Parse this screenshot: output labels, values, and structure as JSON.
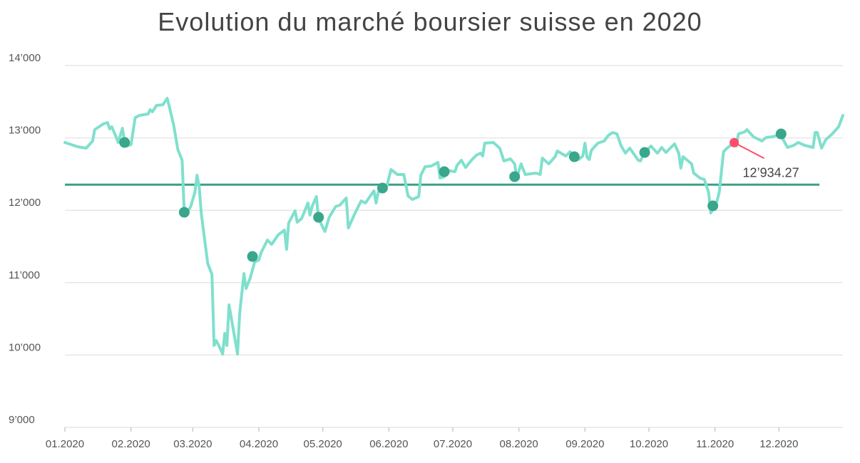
{
  "chart_data": {
    "type": "line",
    "title": "Evolution du marché boursier suisse en 2020",
    "xlabel": "",
    "ylabel": "",
    "ylim": [
      9000,
      14000
    ],
    "xlim": [
      "2020-01-01",
      "2020-12-31"
    ],
    "grid": true,
    "yticks": [
      {
        "value": 9000,
        "label": "9’000"
      },
      {
        "value": 10000,
        "label": "10’000"
      },
      {
        "value": 11000,
        "label": "11’000"
      },
      {
        "value": 12000,
        "label": "12’000"
      },
      {
        "value": 13000,
        "label": "13’000"
      },
      {
        "value": 14000,
        "label": "14’000"
      }
    ],
    "xticks": [
      {
        "date": "2020-01-01",
        "label": "01.2020"
      },
      {
        "date": "2020-02-01",
        "label": "02.2020"
      },
      {
        "date": "2020-03-01",
        "label": "03.2020"
      },
      {
        "date": "2020-04-01",
        "label": "04.2020"
      },
      {
        "date": "2020-05-01",
        "label": "05.2020"
      },
      {
        "date": "2020-06-01",
        "label": "06.2020"
      },
      {
        "date": "2020-07-01",
        "label": "07.2020"
      },
      {
        "date": "2020-08-01",
        "label": "08.2020"
      },
      {
        "date": "2020-09-01",
        "label": "09.2020"
      },
      {
        "date": "2020-10-01",
        "label": "10.2020"
      },
      {
        "date": "2020-11-01",
        "label": "11.2020"
      },
      {
        "date": "2020-12-01",
        "label": "12.2020"
      }
    ],
    "colors": {
      "line": "#7fe0cd",
      "marker": "#3aa68b",
      "average": "#3f9f86",
      "highlight": "#ff4d6a",
      "grid": "#e6e6e6"
    },
    "series": [
      {
        "points": [
          [
            "2020-01-01",
            12937
          ],
          [
            "2020-01-04",
            12907
          ],
          [
            "2020-01-07",
            12878
          ],
          [
            "2020-01-11",
            12858
          ],
          [
            "2020-01-14",
            12957
          ],
          [
            "2020-01-15",
            13114
          ],
          [
            "2020-01-19",
            13193
          ],
          [
            "2020-01-21",
            13213
          ],
          [
            "2020-01-22",
            13124
          ],
          [
            "2020-01-23",
            13154
          ],
          [
            "2020-01-25",
            13016
          ],
          [
            "2020-01-26",
            12937
          ],
          [
            "2020-01-28",
            13134
          ],
          [
            "2020-01-29",
            12937
          ],
          [
            "2020-01-30",
            12888
          ],
          [
            "2020-02-01",
            12907
          ],
          [
            "2020-02-03",
            13281
          ],
          [
            "2020-02-05",
            13311
          ],
          [
            "2020-02-09",
            13331
          ],
          [
            "2020-02-10",
            13390
          ],
          [
            "2020-02-11",
            13360
          ],
          [
            "2020-02-13",
            13449
          ],
          [
            "2020-02-16",
            13459
          ],
          [
            "2020-02-18",
            13547
          ],
          [
            "2020-02-19",
            13429
          ],
          [
            "2020-02-21",
            13183
          ],
          [
            "2020-02-23",
            12839
          ],
          [
            "2020-02-25",
            12691
          ],
          [
            "2020-02-26",
            11972
          ],
          [
            "2020-02-27",
            11953
          ],
          [
            "2020-02-29",
            12051
          ],
          [
            "2020-03-02",
            12248
          ],
          [
            "2020-03-03",
            12484
          ],
          [
            "2020-03-04",
            12327
          ],
          [
            "2020-03-05",
            11953
          ],
          [
            "2020-03-08",
            11264
          ],
          [
            "2020-03-10",
            11116
          ],
          [
            "2020-03-11",
            10132
          ],
          [
            "2020-03-12",
            10201
          ],
          [
            "2020-03-14",
            10083
          ],
          [
            "2020-03-15",
            10014
          ],
          [
            "2020-03-16",
            10299
          ],
          [
            "2020-03-17",
            10132
          ],
          [
            "2020-03-18",
            10693
          ],
          [
            "2020-03-22",
            10014
          ],
          [
            "2020-03-23",
            10575
          ],
          [
            "2020-03-25",
            11126
          ],
          [
            "2020-03-26",
            10919
          ],
          [
            "2020-03-28",
            11067
          ],
          [
            "2020-03-30",
            11283
          ],
          [
            "2020-04-01",
            11313
          ],
          [
            "2020-04-02",
            11411
          ],
          [
            "2020-04-05",
            11589
          ],
          [
            "2020-04-07",
            11529
          ],
          [
            "2020-04-10",
            11657
          ],
          [
            "2020-04-13",
            11726
          ],
          [
            "2020-04-14",
            11460
          ],
          [
            "2020-04-15",
            11825
          ],
          [
            "2020-04-18",
            11992
          ],
          [
            "2020-04-19",
            11835
          ],
          [
            "2020-04-21",
            11884
          ],
          [
            "2020-04-22",
            11953
          ],
          [
            "2020-04-24",
            12100
          ],
          [
            "2020-04-25",
            11933
          ],
          [
            "2020-04-26",
            12051
          ],
          [
            "2020-04-28",
            12189
          ],
          [
            "2020-04-29",
            11884
          ],
          [
            "2020-05-02",
            11707
          ],
          [
            "2020-05-04",
            11903
          ],
          [
            "2020-05-07",
            12051
          ],
          [
            "2020-05-09",
            12071
          ],
          [
            "2020-05-12",
            12169
          ],
          [
            "2020-05-13",
            11756
          ],
          [
            "2020-05-16",
            11953
          ],
          [
            "2020-05-19",
            12130
          ],
          [
            "2020-05-21",
            12100
          ],
          [
            "2020-05-24",
            12228
          ],
          [
            "2020-05-25",
            12268
          ],
          [
            "2020-05-26",
            12100
          ],
          [
            "2020-05-27",
            12248
          ],
          [
            "2020-05-29",
            12268
          ],
          [
            "2020-05-31",
            12327
          ],
          [
            "2020-06-02",
            12563
          ],
          [
            "2020-06-05",
            12494
          ],
          [
            "2020-06-08",
            12494
          ],
          [
            "2020-06-10",
            12199
          ],
          [
            "2020-06-12",
            12150
          ],
          [
            "2020-06-15",
            12189
          ],
          [
            "2020-06-16",
            12484
          ],
          [
            "2020-06-18",
            12602
          ],
          [
            "2020-06-21",
            12612
          ],
          [
            "2020-06-24",
            12661
          ],
          [
            "2020-06-25",
            12445
          ],
          [
            "2020-06-27",
            12464
          ],
          [
            "2020-06-28",
            12553
          ],
          [
            "2020-07-02",
            12533
          ],
          [
            "2020-07-03",
            12622
          ],
          [
            "2020-07-05",
            12691
          ],
          [
            "2020-07-07",
            12592
          ],
          [
            "2020-07-10",
            12701
          ],
          [
            "2020-07-12",
            12760
          ],
          [
            "2020-07-14",
            12789
          ],
          [
            "2020-07-15",
            12750
          ],
          [
            "2020-07-16",
            12927
          ],
          [
            "2020-07-20",
            12937
          ],
          [
            "2020-07-23",
            12858
          ],
          [
            "2020-07-25",
            12681
          ],
          [
            "2020-07-28",
            12711
          ],
          [
            "2020-07-30",
            12642
          ],
          [
            "2020-07-31",
            12445
          ],
          [
            "2020-08-02",
            12642
          ],
          [
            "2020-08-04",
            12494
          ],
          [
            "2020-08-09",
            12514
          ],
          [
            "2020-08-11",
            12494
          ],
          [
            "2020-08-12",
            12720
          ],
          [
            "2020-08-15",
            12642
          ],
          [
            "2020-08-18",
            12740
          ],
          [
            "2020-08-19",
            12819
          ],
          [
            "2020-08-23",
            12750
          ],
          [
            "2020-08-25",
            12809
          ],
          [
            "2020-08-27",
            12730
          ],
          [
            "2020-08-29",
            12701
          ],
          [
            "2020-08-31",
            12750
          ],
          [
            "2020-09-01",
            12927
          ],
          [
            "2020-09-02",
            12730
          ],
          [
            "2020-09-03",
            12701
          ],
          [
            "2020-09-04",
            12829
          ],
          [
            "2020-09-07",
            12927
          ],
          [
            "2020-09-10",
            12957
          ],
          [
            "2020-09-12",
            13036
          ],
          [
            "2020-09-14",
            13075
          ],
          [
            "2020-09-16",
            13055
          ],
          [
            "2020-09-18",
            12888
          ],
          [
            "2020-09-20",
            12789
          ],
          [
            "2020-09-22",
            12858
          ],
          [
            "2020-09-26",
            12691
          ],
          [
            "2020-09-27",
            12681
          ],
          [
            "2020-09-29",
            12799
          ],
          [
            "2020-10-02",
            12888
          ],
          [
            "2020-10-04",
            12819
          ],
          [
            "2020-10-05",
            12789
          ],
          [
            "2020-10-07",
            12868
          ],
          [
            "2020-10-09",
            12799
          ],
          [
            "2020-10-13",
            12917
          ],
          [
            "2020-10-15",
            12789
          ],
          [
            "2020-10-16",
            12583
          ],
          [
            "2020-10-17",
            12740
          ],
          [
            "2020-10-21",
            12642
          ],
          [
            "2020-10-22",
            12514
          ],
          [
            "2020-10-25",
            12445
          ],
          [
            "2020-10-27",
            12425
          ],
          [
            "2020-10-29",
            12248
          ],
          [
            "2020-10-30",
            11963
          ],
          [
            "2020-10-31",
            12022
          ],
          [
            "2020-11-02",
            12130
          ],
          [
            "2020-11-03",
            12248
          ],
          [
            "2020-11-05",
            12809
          ],
          [
            "2020-11-07",
            12868
          ],
          [
            "2020-11-10",
            12934
          ],
          [
            "2020-11-11",
            12888
          ],
          [
            "2020-11-12",
            13055
          ],
          [
            "2020-11-15",
            13085
          ],
          [
            "2020-11-16",
            13114
          ],
          [
            "2020-11-19",
            13016
          ],
          [
            "2020-11-23",
            12957
          ],
          [
            "2020-11-25",
            13006
          ],
          [
            "2020-11-28",
            13016
          ],
          [
            "2020-12-02",
            13055
          ],
          [
            "2020-12-03",
            12976
          ],
          [
            "2020-12-05",
            12868
          ],
          [
            "2020-12-08",
            12898
          ],
          [
            "2020-12-10",
            12937
          ],
          [
            "2020-12-13",
            12898
          ],
          [
            "2020-12-17",
            12868
          ],
          [
            "2020-12-18",
            13075
          ],
          [
            "2020-12-19",
            13075
          ],
          [
            "2020-12-21",
            12858
          ],
          [
            "2020-12-23",
            12976
          ],
          [
            "2020-12-26",
            13055
          ],
          [
            "2020-12-29",
            13154
          ],
          [
            "2020-12-31",
            13311
          ]
        ]
      }
    ],
    "markers": [
      [
        "2020-01-29",
        12937
      ],
      [
        "2020-02-26",
        11972
      ],
      [
        "2020-03-29",
        11362
      ],
      [
        "2020-04-29",
        11903
      ],
      [
        "2020-05-29",
        12307
      ],
      [
        "2020-06-27",
        12533
      ],
      [
        "2020-07-30",
        12464
      ],
      [
        "2020-08-27",
        12740
      ],
      [
        "2020-09-29",
        12799
      ],
      [
        "2020-10-31",
        12061
      ],
      [
        "2020-12-02",
        13055
      ]
    ],
    "average_line": {
      "value": 12354,
      "from": "2020-01-01",
      "to": "2020-12-20"
    },
    "highlight": {
      "date": "2020-11-10",
      "value": 12934.27,
      "label": "12’934.27"
    }
  }
}
